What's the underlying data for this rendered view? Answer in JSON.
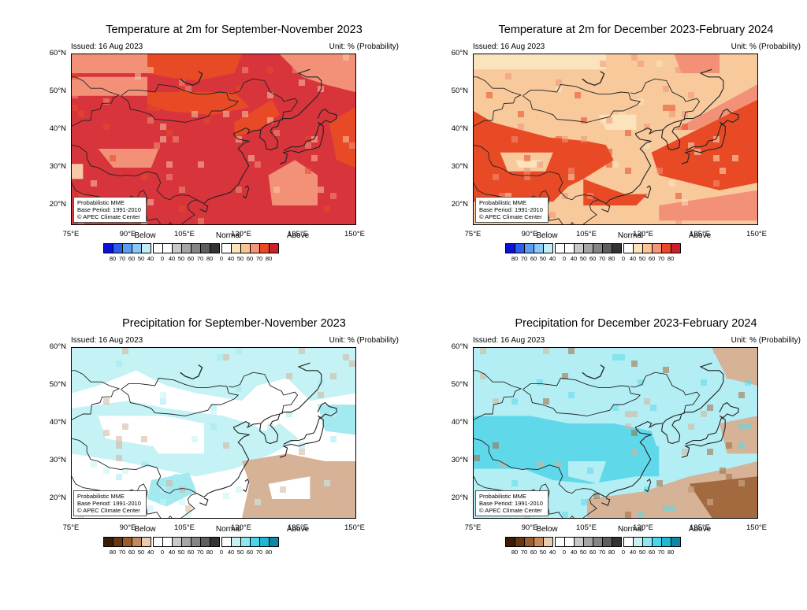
{
  "panels": [
    {
      "title": "Temperature at 2m for September-November 2023",
      "issued": "Issued: 16 Aug 2023",
      "unit": "Unit: % (Probability)",
      "variable": "temperature",
      "dominant_category": "Above",
      "colors": {
        "base": "#d8343c",
        "mid": "#e84a26",
        "light": "#f29178",
        "pale": "#f7c9a8"
      }
    },
    {
      "title": "Temperature at 2m for December 2023-February 2024",
      "issued": "Issued: 16 Aug 2023",
      "unit": "Unit: % (Probability)",
      "variable": "temperature",
      "dominant_category": "Above",
      "colors": {
        "base": "#f7c99b",
        "mid": "#e84a26",
        "light": "#f29178",
        "pale": "#fbe3bd"
      }
    },
    {
      "title": "Precipitation for September-November 2023",
      "issued": "Issued: 16 Aug 2023",
      "unit": "Unit: % (Probability)",
      "variable": "precipitation",
      "dominant_category": "Normal",
      "colors": {
        "base": "#ffffff",
        "mid": "#c4f2f5",
        "light": "#a3e9f0",
        "pale": "#d6b297"
      }
    },
    {
      "title": "Precipitation for December 2023-February 2024",
      "issued": "Issued: 16 Aug 2023",
      "unit": "Unit: % (Probability)",
      "variable": "precipitation",
      "dominant_category": "Above",
      "colors": {
        "base": "#b3eef4",
        "mid": "#5fd9ea",
        "light": "#d6b297",
        "pale": "#a26a3e"
      }
    }
  ],
  "axes": {
    "lat_ticks": [
      "60°N",
      "50°N",
      "40°N",
      "30°N",
      "20°N"
    ],
    "lon_ticks": [
      "75°E",
      "90°E",
      "105°E",
      "120°E",
      "135°E",
      "150°E"
    ]
  },
  "credit": {
    "line1": "Probabilistic MME",
    "line2": "Base Period: 1991-2010",
    "line3": "© APEC Climate Center"
  },
  "legend": {
    "below_label": "Below",
    "normal_label": "Normal",
    "above_label": "Above",
    "values": [
      "80",
      "70",
      "60",
      "50",
      "40",
      "0",
      "40",
      "50",
      "60",
      "70",
      "80",
      "0",
      "40",
      "50",
      "60",
      "70",
      "80"
    ],
    "temperature_colors": {
      "below": [
        "#0b12d6",
        "#2e5ee8",
        "#5b9ef2",
        "#8cc8f6",
        "#c3ecf8"
      ],
      "normal": [
        "#ffffff",
        "#ffffff",
        "#c9c9c9",
        "#a5a5a5",
        "#858585",
        "#5e5e5e",
        "#333333"
      ],
      "above": [
        "#ffffff",
        "#fde3b9",
        "#fbc593",
        "#f49677",
        "#e84a26",
        "#c9202e"
      ]
    },
    "precipitation_colors": {
      "below": [
        "#3a1d08",
        "#6b3512",
        "#9c5c2d",
        "#c48a5e",
        "#e7cbb3"
      ],
      "normal": [
        "#ffffff",
        "#ffffff",
        "#c9c9c9",
        "#a5a5a5",
        "#858585",
        "#5e5e5e",
        "#333333"
      ],
      "above": [
        "#ffffff",
        "#c6f2f6",
        "#8fe6f0",
        "#49d6e8",
        "#1eb8d6",
        "#0e86a8"
      ]
    }
  }
}
